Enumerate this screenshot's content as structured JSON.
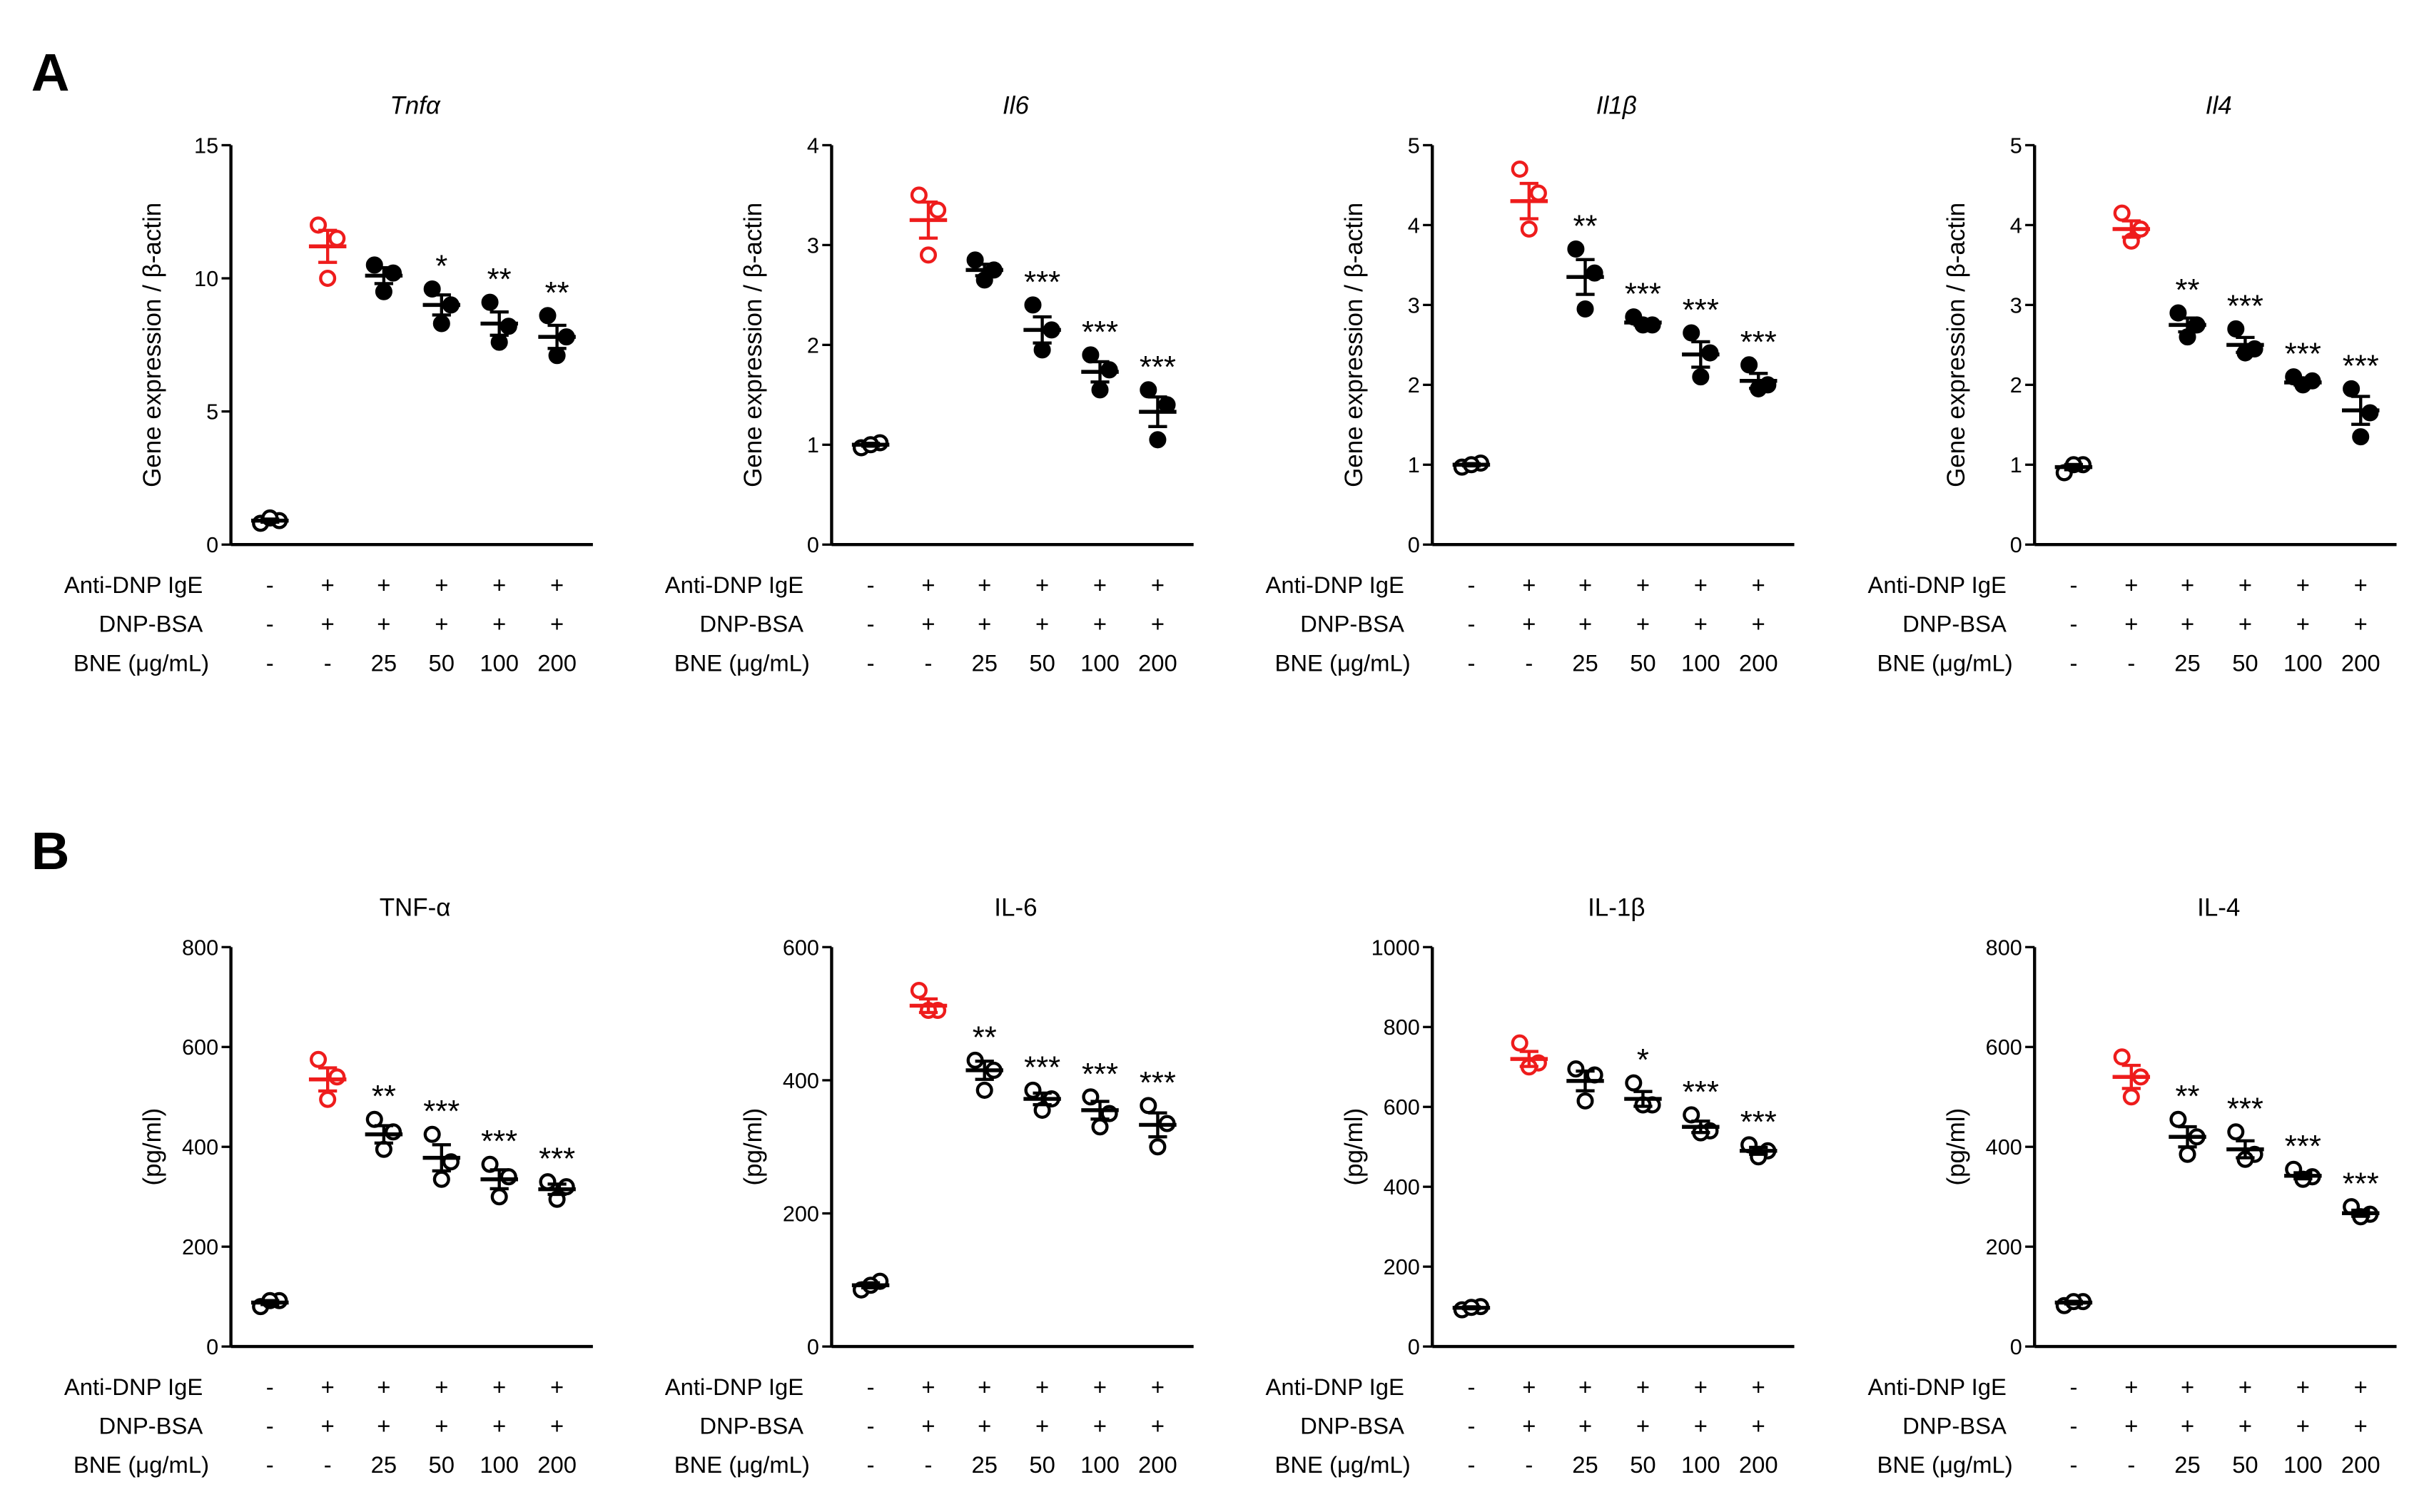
{
  "panel_letters": [
    "A",
    "B"
  ],
  "conditions": {
    "row_labels": [
      "Anti-DNP IgE",
      "DNP-BSA",
      "BNE (μg/mL)"
    ],
    "rows": [
      [
        "-",
        "+",
        "+",
        "+",
        "+",
        "+"
      ],
      [
        "-",
        "+",
        "+",
        "+",
        "+",
        "+"
      ],
      [
        "-",
        "-",
        "25",
        "50",
        "100",
        "200"
      ]
    ]
  },
  "colors": {
    "model": "#ee1c1c",
    "default": "#000000"
  },
  "chart_data": [
    {
      "type": "scatter",
      "panel": "A",
      "title": "Tnfα",
      "italic": true,
      "ylabel": "Gene expression / β-actin",
      "ylim": [
        0,
        15
      ],
      "yticks": [
        0,
        5,
        10,
        15
      ],
      "filled": [
        false,
        false,
        true,
        true,
        true,
        true
      ],
      "groups": [
        {
          "mean": 0.9,
          "points": [
            0.8,
            0.9,
            1.0
          ],
          "sig": ""
        },
        {
          "mean": 11.2,
          "points": [
            12.0,
            11.5,
            10.0
          ],
          "sig": ""
        },
        {
          "mean": 10.1,
          "points": [
            10.5,
            10.2,
            9.5
          ],
          "sig": ""
        },
        {
          "mean": 9.0,
          "points": [
            9.6,
            9.0,
            8.3
          ],
          "sig": "*"
        },
        {
          "mean": 8.3,
          "points": [
            9.1,
            8.2,
            7.6
          ],
          "sig": "**"
        },
        {
          "mean": 7.8,
          "points": [
            8.6,
            7.8,
            7.1
          ],
          "sig": "**"
        }
      ]
    },
    {
      "type": "scatter",
      "panel": "A",
      "title": "Il6",
      "italic": true,
      "ylabel": "Gene expression / β-actin",
      "ylim": [
        0,
        4
      ],
      "yticks": [
        0,
        1,
        2,
        3,
        4
      ],
      "filled": [
        false,
        false,
        true,
        true,
        true,
        true
      ],
      "groups": [
        {
          "mean": 1.0,
          "points": [
            0.97,
            1.02,
            1.0
          ],
          "sig": ""
        },
        {
          "mean": 3.25,
          "points": [
            3.5,
            3.35,
            2.9
          ],
          "sig": ""
        },
        {
          "mean": 2.75,
          "points": [
            2.85,
            2.75,
            2.65
          ],
          "sig": ""
        },
        {
          "mean": 2.15,
          "points": [
            2.4,
            2.15,
            1.95
          ],
          "sig": "***"
        },
        {
          "mean": 1.73,
          "points": [
            1.9,
            1.75,
            1.55
          ],
          "sig": "***"
        },
        {
          "mean": 1.33,
          "points": [
            1.55,
            1.4,
            1.05
          ],
          "sig": "***"
        }
      ]
    },
    {
      "type": "scatter",
      "panel": "A",
      "title": "Il1β",
      "italic": true,
      "ylabel": "Gene expression / β-actin",
      "ylim": [
        0,
        5
      ],
      "yticks": [
        0,
        1,
        2,
        3,
        4,
        5
      ],
      "filled": [
        false,
        false,
        true,
        true,
        true,
        true
      ],
      "groups": [
        {
          "mean": 1.0,
          "points": [
            0.97,
            1.02,
            1.0
          ],
          "sig": ""
        },
        {
          "mean": 4.3,
          "points": [
            4.7,
            4.4,
            3.95
          ],
          "sig": ""
        },
        {
          "mean": 3.35,
          "points": [
            3.7,
            3.4,
            2.95
          ],
          "sig": "**"
        },
        {
          "mean": 2.78,
          "points": [
            2.85,
            2.75,
            2.75
          ],
          "sig": "***"
        },
        {
          "mean": 2.38,
          "points": [
            2.65,
            2.4,
            2.1
          ],
          "sig": "***"
        },
        {
          "mean": 2.05,
          "points": [
            2.25,
            2.0,
            1.95
          ],
          "sig": "***"
        }
      ]
    },
    {
      "type": "scatter",
      "panel": "A",
      "title": "Il4",
      "italic": true,
      "ylabel": "Gene expression / β-actin",
      "ylim": [
        0,
        5
      ],
      "yticks": [
        0,
        1,
        2,
        3,
        4,
        5
      ],
      "filled": [
        false,
        false,
        true,
        true,
        true,
        true
      ],
      "groups": [
        {
          "mean": 0.97,
          "points": [
            0.9,
            1.0,
            1.0
          ],
          "sig": ""
        },
        {
          "mean": 3.95,
          "points": [
            4.15,
            3.95,
            3.8
          ],
          "sig": ""
        },
        {
          "mean": 2.75,
          "points": [
            2.9,
            2.75,
            2.6
          ],
          "sig": "**"
        },
        {
          "mean": 2.5,
          "points": [
            2.7,
            2.45,
            2.4
          ],
          "sig": "***"
        },
        {
          "mean": 2.03,
          "points": [
            2.1,
            2.05,
            2.0
          ],
          "sig": "***"
        },
        {
          "mean": 1.68,
          "points": [
            1.95,
            1.65,
            1.35
          ],
          "sig": "***"
        }
      ]
    },
    {
      "type": "scatter",
      "panel": "B",
      "title": "TNF-α",
      "italic": false,
      "ylabel": "(pg/ml)",
      "ylim": [
        0,
        800
      ],
      "yticks": [
        0,
        200,
        400,
        600,
        800
      ],
      "filled": [
        false,
        false,
        false,
        false,
        false,
        false
      ],
      "groups": [
        {
          "mean": 88,
          "points": [
            80,
            92,
            92
          ],
          "sig": ""
        },
        {
          "mean": 535,
          "points": [
            575,
            540,
            495
          ],
          "sig": ""
        },
        {
          "mean": 425,
          "points": [
            455,
            430,
            395
          ],
          "sig": "**"
        },
        {
          "mean": 378,
          "points": [
            425,
            370,
            335
          ],
          "sig": "***"
        },
        {
          "mean": 335,
          "points": [
            365,
            340,
            300
          ],
          "sig": "***"
        },
        {
          "mean": 315,
          "points": [
            330,
            320,
            295
          ],
          "sig": "***"
        }
      ]
    },
    {
      "type": "scatter",
      "panel": "B",
      "title": "IL-6",
      "italic": false,
      "ylabel": "(pg/ml)",
      "ylim": [
        0,
        600
      ],
      "yticks": [
        0,
        200,
        400,
        600
      ],
      "filled": [
        false,
        false,
        false,
        false,
        false,
        false
      ],
      "groups": [
        {
          "mean": 92,
          "points": [
            85,
            98,
            92
          ],
          "sig": ""
        },
        {
          "mean": 512,
          "points": [
            535,
            505,
            505
          ],
          "sig": ""
        },
        {
          "mean": 415,
          "points": [
            430,
            415,
            385
          ],
          "sig": "**"
        },
        {
          "mean": 372,
          "points": [
            385,
            372,
            355
          ],
          "sig": "***"
        },
        {
          "mean": 355,
          "points": [
            375,
            350,
            330
          ],
          "sig": "***"
        },
        {
          "mean": 333,
          "points": [
            362,
            335,
            300
          ],
          "sig": "***"
        }
      ]
    },
    {
      "type": "scatter",
      "panel": "B",
      "title": "IL-1β",
      "italic": false,
      "ylabel": "(pg/ml)",
      "ylim": [
        0,
        1000
      ],
      "yticks": [
        0,
        200,
        400,
        600,
        800,
        1000
      ],
      "filled": [
        false,
        false,
        false,
        false,
        false,
        false
      ],
      "groups": [
        {
          "mean": 97,
          "points": [
            92,
            100,
            98
          ],
          "sig": ""
        },
        {
          "mean": 720,
          "points": [
            760,
            710,
            700
          ],
          "sig": ""
        },
        {
          "mean": 665,
          "points": [
            695,
            680,
            615
          ],
          "sig": ""
        },
        {
          "mean": 620,
          "points": [
            660,
            605,
            605
          ],
          "sig": "*"
        },
        {
          "mean": 550,
          "points": [
            580,
            540,
            535
          ],
          "sig": "***"
        },
        {
          "mean": 490,
          "points": [
            505,
            490,
            475
          ],
          "sig": "***"
        }
      ]
    },
    {
      "type": "scatter",
      "panel": "B",
      "title": "IL-4",
      "italic": false,
      "ylabel": "(pg/ml)",
      "ylim": [
        0,
        800
      ],
      "yticks": [
        0,
        200,
        400,
        600,
        800
      ],
      "filled": [
        false,
        false,
        false,
        false,
        false,
        false
      ],
      "groups": [
        {
          "mean": 88,
          "points": [
            82,
            90,
            90
          ],
          "sig": ""
        },
        {
          "mean": 540,
          "points": [
            580,
            540,
            500
          ],
          "sig": ""
        },
        {
          "mean": 420,
          "points": [
            455,
            420,
            385
          ],
          "sig": "**"
        },
        {
          "mean": 395,
          "points": [
            430,
            385,
            375
          ],
          "sig": "***"
        },
        {
          "mean": 342,
          "points": [
            355,
            340,
            335
          ],
          "sig": "***"
        },
        {
          "mean": 267,
          "points": [
            280,
            265,
            260
          ],
          "sig": "***"
        }
      ]
    }
  ]
}
